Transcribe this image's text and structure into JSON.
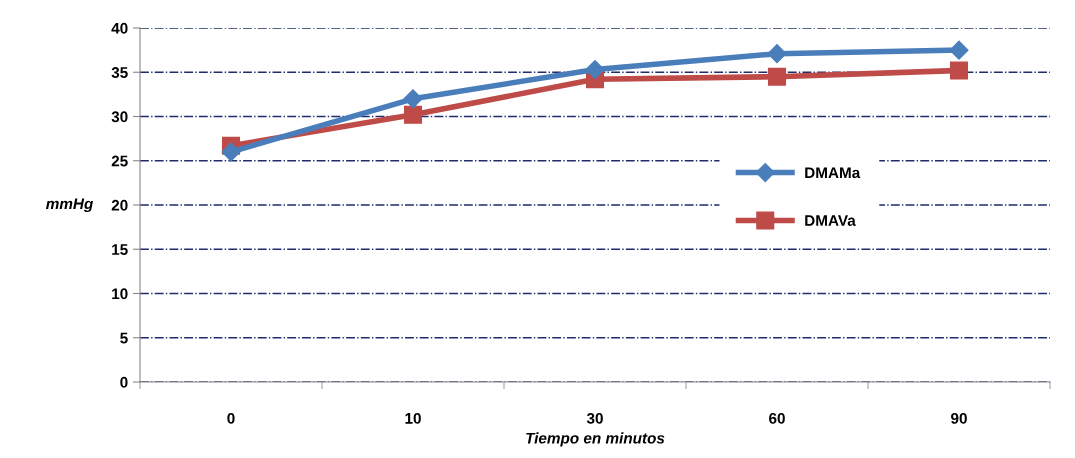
{
  "chart_data": {
    "type": "line",
    "xlabel": "Tiempo en minutos",
    "ylabel": "mmHg",
    "categories": [
      "0",
      "10",
      "30",
      "60",
      "90"
    ],
    "series": [
      {
        "name": "DMAMa",
        "color": "#4a7ebb",
        "marker": "diamond",
        "values": [
          26.0,
          32.0,
          35.3,
          37.1,
          37.5
        ]
      },
      {
        "name": "DMAVa",
        "color": "#be4b48",
        "marker": "square",
        "values": [
          26.7,
          30.2,
          34.2,
          34.5,
          35.2
        ]
      }
    ],
    "ylim": [
      0,
      40
    ],
    "yticks": [
      0,
      5,
      10,
      15,
      20,
      25,
      30,
      35,
      40
    ],
    "grid": "y",
    "legend": "right",
    "line_style": "solid"
  }
}
